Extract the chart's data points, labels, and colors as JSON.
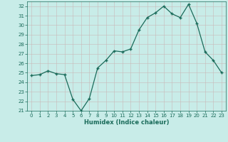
{
  "x": [
    0,
    1,
    2,
    3,
    4,
    5,
    6,
    7,
    8,
    9,
    10,
    11,
    12,
    13,
    14,
    15,
    16,
    17,
    18,
    19,
    20,
    21,
    22,
    23
  ],
  "y": [
    24.7,
    24.8,
    25.2,
    24.9,
    24.8,
    22.2,
    21.0,
    22.3,
    25.5,
    26.3,
    27.3,
    27.2,
    27.5,
    29.5,
    30.8,
    31.3,
    32.0,
    31.2,
    30.8,
    32.2,
    30.2,
    27.2,
    26.3,
    25.0
  ],
  "xlim": [
    -0.5,
    23.5
  ],
  "ylim": [
    21,
    32.5
  ],
  "yticks": [
    21,
    22,
    23,
    24,
    25,
    26,
    27,
    28,
    29,
    30,
    31,
    32
  ],
  "xticks": [
    0,
    1,
    2,
    3,
    4,
    5,
    6,
    7,
    8,
    9,
    10,
    11,
    12,
    13,
    14,
    15,
    16,
    17,
    18,
    19,
    20,
    21,
    22,
    23
  ],
  "xlabel": "Humidex (Indice chaleur)",
  "line_color": "#1a6b5a",
  "marker": "+",
  "bg_color": "#c8ece8",
  "grid_color": "#c8b8b8",
  "axis_color": "#1a6b5a",
  "label_color": "#1a6b5a",
  "xlabel_fontsize": 6.0,
  "tick_fontsize": 5.0,
  "linewidth": 0.9,
  "markersize": 3.5
}
